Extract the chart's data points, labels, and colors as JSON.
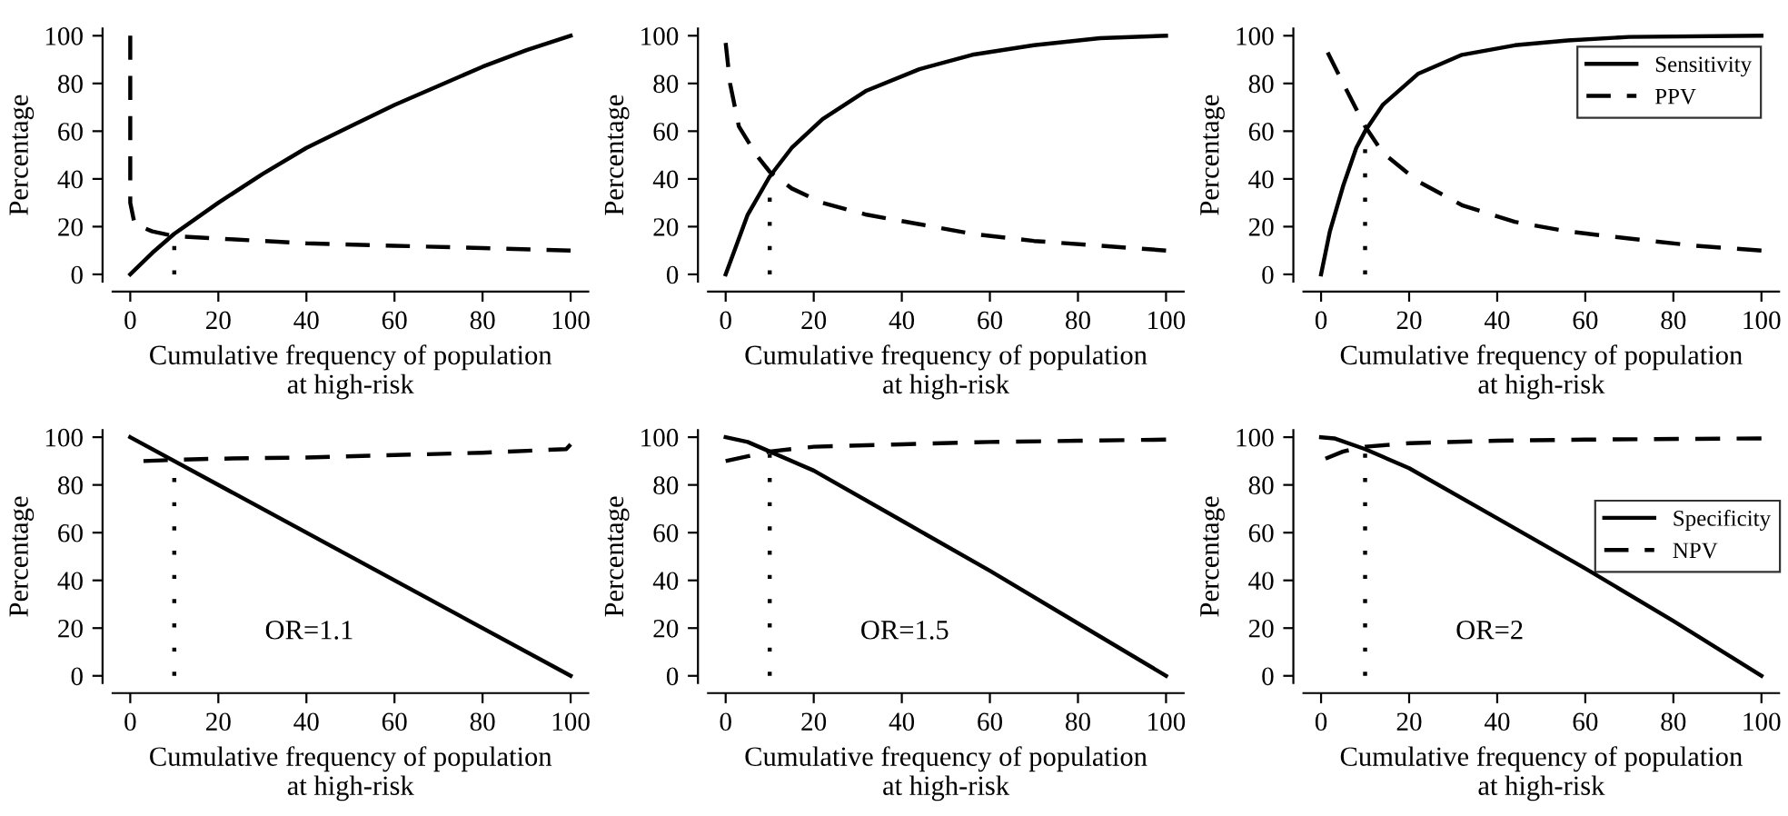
{
  "chart_data": [
    {
      "type": "line",
      "xlabel": "Cumulative frequency of population\nat high-risk",
      "ylabel": "Percentage",
      "xlim": [
        -4,
        104
      ],
      "ylim": [
        -3,
        103
      ],
      "xticks": [
        0,
        20,
        40,
        60,
        80,
        100
      ],
      "yticks": [
        0,
        20,
        40,
        60,
        80,
        100
      ],
      "grid": false,
      "legend": false,
      "series": [
        {
          "color": "#000000",
          "line_style": "solid",
          "x": [
            0,
            5,
            10,
            20,
            30,
            40,
            50,
            60,
            70,
            80,
            90,
            100
          ],
          "values": [
            0,
            9,
            17,
            30,
            42,
            53,
            62,
            71,
            79,
            87,
            94,
            100
          ]
        },
        {
          "color": "#000000",
          "line_style": "dashed",
          "x": [
            0,
            0,
            1,
            5,
            10,
            20,
            40,
            60,
            80,
            100
          ],
          "values": [
            100,
            30,
            21,
            18,
            16,
            15,
            13,
            12,
            11,
            10
          ]
        },
        {
          "color": "#000000",
          "line_style": "dotted",
          "x": [
            10,
            10
          ],
          "values": [
            0,
            17
          ]
        }
      ]
    },
    {
      "type": "line",
      "xlabel": "Cumulative frequency of population\nat high-risk",
      "ylabel": "Percentage",
      "xlim": [
        -4,
        104
      ],
      "ylim": [
        -3,
        103
      ],
      "xticks": [
        0,
        20,
        40,
        60,
        80,
        100
      ],
      "yticks": [
        0,
        20,
        40,
        60,
        80,
        100
      ],
      "grid": false,
      "legend": false,
      "series": [
        {
          "color": "#000000",
          "line_style": "solid",
          "x": [
            0,
            2,
            5,
            10,
            15,
            22,
            32,
            44,
            56,
            70,
            85,
            100
          ],
          "values": [
            0,
            10,
            25,
            41,
            53,
            65,
            77,
            86,
            92,
            96,
            99,
            100
          ]
        },
        {
          "color": "#000000",
          "line_style": "dashed",
          "x": [
            0,
            1,
            3,
            7,
            10,
            15,
            22,
            32,
            44,
            56,
            70,
            85,
            100
          ],
          "values": [
            97,
            80,
            62,
            50,
            43,
            36,
            30,
            25,
            21,
            17,
            14,
            12,
            10
          ]
        },
        {
          "color": "#000000",
          "line_style": "dotted",
          "x": [
            10,
            10
          ],
          "values": [
            0,
            41
          ]
        }
      ]
    },
    {
      "type": "line",
      "xlabel": "Cumulative frequency of population\nat high-risk",
      "ylabel": "Percentage",
      "xlim": [
        -4,
        104
      ],
      "ylim": [
        -3,
        103
      ],
      "xticks": [
        0,
        20,
        40,
        60,
        80,
        100
      ],
      "yticks": [
        0,
        20,
        40,
        60,
        80,
        100
      ],
      "grid": false,
      "legend": "top right",
      "series": [
        {
          "name": "Sensitivity",
          "color": "#000000",
          "line_style": "solid",
          "x": [
            0,
            2,
            5,
            8,
            10,
            14,
            22,
            32,
            44,
            56,
            70,
            100
          ],
          "values": [
            0,
            18,
            37,
            53,
            60,
            71,
            84,
            92,
            96,
            98,
            99.5,
            100
          ]
        },
        {
          "name": "PPV",
          "color": "#000000",
          "line_style": "dashed",
          "x": [
            1.5,
            5,
            10,
            14,
            22,
            32,
            44,
            56,
            70,
            85,
            100
          ],
          "values": [
            93,
            80,
            62,
            51,
            39,
            29,
            22,
            18,
            15,
            12,
            10
          ]
        },
        {
          "color": "#000000",
          "line_style": "dotted",
          "x": [
            10,
            10
          ],
          "values": [
            0,
            55
          ]
        }
      ]
    },
    {
      "type": "line",
      "xlabel": "Cumulative frequency of population\nat high-risk",
      "ylabel": "Percentage",
      "xlim": [
        -4,
        104
      ],
      "ylim": [
        -3,
        103
      ],
      "xticks": [
        0,
        20,
        40,
        60,
        80,
        100
      ],
      "yticks": [
        0,
        20,
        40,
        60,
        80,
        100
      ],
      "grid": false,
      "legend": false,
      "annotations": [
        "OR=1.1"
      ],
      "series": [
        {
          "color": "#000000",
          "line_style": "solid",
          "x": [
            0,
            100
          ],
          "values": [
            100,
            0
          ]
        },
        {
          "color": "#000000",
          "line_style": "dashed",
          "x": [
            3,
            10,
            20,
            40,
            60,
            80,
            99,
            100
          ],
          "values": [
            90,
            90.5,
            91,
            91.5,
            92.5,
            93.5,
            95,
            97
          ]
        },
        {
          "color": "#000000",
          "line_style": "dotted",
          "x": [
            10,
            10
          ],
          "values": [
            0,
            90
          ]
        }
      ]
    },
    {
      "type": "line",
      "xlabel": "Cumulative frequency of population\nat high-risk",
      "ylabel": "Percentage",
      "xlim": [
        -4,
        104
      ],
      "ylim": [
        -3,
        103
      ],
      "xticks": [
        0,
        20,
        40,
        60,
        80,
        100
      ],
      "yticks": [
        0,
        20,
        40,
        60,
        80,
        100
      ],
      "grid": false,
      "legend": false,
      "annotations": [
        "OR=1.5"
      ],
      "series": [
        {
          "color": "#000000",
          "line_style": "solid",
          "x": [
            0,
            5,
            10,
            20,
            40,
            60,
            80,
            100
          ],
          "values": [
            100,
            98,
            94,
            86,
            65,
            44,
            22,
            0
          ]
        },
        {
          "color": "#000000",
          "line_style": "dashed",
          "x": [
            0,
            5,
            10,
            20,
            40,
            60,
            80,
            100
          ],
          "values": [
            90,
            92,
            94,
            96,
            97,
            98,
            98.5,
            99
          ]
        },
        {
          "color": "#000000",
          "line_style": "dotted",
          "x": [
            10,
            10
          ],
          "values": [
            0,
            93
          ]
        }
      ]
    },
    {
      "type": "line",
      "xlabel": "Cumulative frequency of population\nat high-risk",
      "ylabel": "Percentage",
      "xlim": [
        -4,
        104
      ],
      "ylim": [
        -3,
        103
      ],
      "xticks": [
        0,
        20,
        40,
        60,
        80,
        100
      ],
      "yticks": [
        0,
        20,
        40,
        60,
        80,
        100
      ],
      "grid": false,
      "legend": "right",
      "annotations": [
        "OR=2"
      ],
      "series": [
        {
          "name": "Specificity",
          "color": "#000000",
          "line_style": "solid",
          "x": [
            0,
            3,
            10,
            20,
            40,
            60,
            80,
            100
          ],
          "values": [
            100,
            99.5,
            95,
            87,
            66,
            45,
            23,
            0
          ]
        },
        {
          "name": "NPV",
          "color": "#000000",
          "line_style": "dashed",
          "x": [
            1,
            5,
            10,
            20,
            40,
            60,
            100
          ],
          "values": [
            91,
            94,
            96,
            97.5,
            98.5,
            99,
            99.5
          ]
        },
        {
          "color": "#000000",
          "line_style": "dotted",
          "x": [
            10,
            10
          ],
          "values": [
            0,
            94
          ]
        }
      ]
    }
  ]
}
